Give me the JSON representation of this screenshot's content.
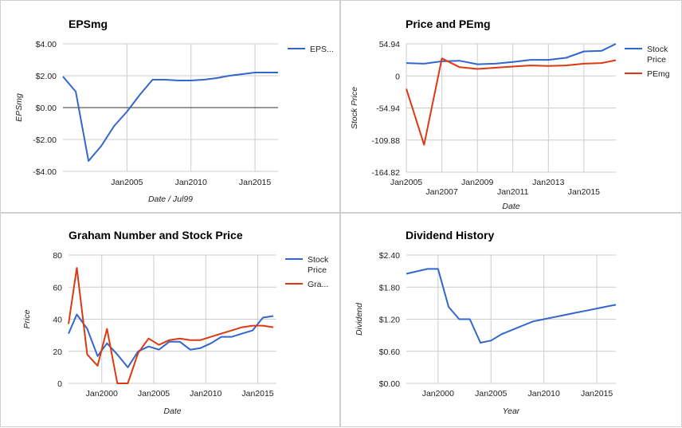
{
  "chart_data": [
    {
      "type": "line",
      "title": "EPSmg",
      "xlabel": "Date / Jul99",
      "ylabel": "EPSmg",
      "x_ticks": [
        "Jan2005",
        "Jan2010",
        "Jan2015"
      ],
      "y_ticks": [
        "$4.00",
        "$2.00",
        "$0.00",
        "-$2.00",
        "-$4.00"
      ],
      "ylim": [
        -4,
        4
      ],
      "xlim": [
        2000.0,
        2016.8
      ],
      "grid": true,
      "legend": "right",
      "series": [
        {
          "name": "EPS...",
          "color": "#3366cc",
          "x": [
            2000.0,
            2001.0,
            2002.0,
            2003.0,
            2004.0,
            2005.0,
            2006.0,
            2007.0,
            2008.0,
            2009.0,
            2010.0,
            2011.0,
            2012.0,
            2013.0,
            2014.0,
            2015.0,
            2016.0,
            2016.8
          ],
          "values": [
            1.95,
            1.0,
            -3.35,
            -2.4,
            -1.15,
            -0.25,
            0.8,
            1.75,
            1.75,
            1.7,
            1.7,
            1.75,
            1.85,
            2.0,
            2.1,
            2.2,
            2.2,
            2.2
          ]
        }
      ]
    },
    {
      "type": "line",
      "title": "Price and PEmg",
      "xlabel": "Date",
      "ylabel": "Stock Price",
      "x_ticks": [
        "Jan2005",
        "Jan2007",
        "Jan2009",
        "Jan2011",
        "Jan2013",
        "Jan2015"
      ],
      "y_ticks": [
        "54.94",
        "0",
        "-54.94",
        "-109.88",
        "-164.82"
      ],
      "ylim": [
        -164.82,
        54.94
      ],
      "xlim": [
        2005.0,
        2016.8
      ],
      "grid": true,
      "legend": "right",
      "series": [
        {
          "name": "Stock Price",
          "color": "#3366cc",
          "x": [
            2005.0,
            2006.0,
            2007.0,
            2008.0,
            2009.0,
            2010.0,
            2011.0,
            2012.0,
            2013.0,
            2014.0,
            2015.0,
            2016.0,
            2016.8
          ],
          "values": [
            22.0,
            21.0,
            25.0,
            26.0,
            20.0,
            21.0,
            24.0,
            27.5,
            27.5,
            31.0,
            42.0,
            43.0,
            55.0
          ]
        },
        {
          "name": "PEmg",
          "color": "#dc3912",
          "x": [
            2005.0,
            2006.0,
            2007.0,
            2008.0,
            2009.0,
            2010.0,
            2011.0,
            2012.0,
            2013.0,
            2014.0,
            2015.0,
            2016.0,
            2016.8
          ],
          "values": [
            -22.0,
            -118.0,
            30.0,
            15.0,
            12.0,
            14.0,
            16.0,
            18.0,
            17.0,
            18.0,
            21.0,
            22.0,
            27.0
          ]
        }
      ]
    },
    {
      "type": "line",
      "title": "Graham Number and Stock Price",
      "xlabel": "Date",
      "ylabel": "Price",
      "x_ticks": [
        "Jan2000",
        "Jan2005",
        "Jan2010",
        "Jan2015"
      ],
      "y_ticks": [
        "80",
        "60",
        "40",
        "20",
        "0"
      ],
      "ylim": [
        0,
        80
      ],
      "xlim": [
        1996.8,
        2016.8
      ],
      "grid": true,
      "legend": "right",
      "series": [
        {
          "name": "Stock Price",
          "color": "#3366cc",
          "x": [
            1996.8,
            1997.6,
            1998.6,
            1999.6,
            2000.5,
            2001.5,
            2002.5,
            2003.5,
            2004.5,
            2005.5,
            2006.5,
            2007.5,
            2008.5,
            2009.5,
            2010.5,
            2011.5,
            2012.5,
            2013.5,
            2014.5,
            2015.5,
            2016.5
          ],
          "values": [
            31,
            43,
            34,
            17,
            25,
            18,
            10,
            20,
            23,
            21,
            26,
            26,
            21,
            22,
            25,
            29,
            29,
            31,
            33,
            41,
            42
          ]
        },
        {
          "name": "Gra...",
          "color": "#dc3912",
          "x": [
            1996.8,
            1997.6,
            1998.6,
            1999.6,
            2000.5,
            2001.5,
            2002.5,
            2003.5,
            2004.5,
            2005.5,
            2006.5,
            2007.5,
            2008.5,
            2009.5,
            2010.5,
            2011.5,
            2012.5,
            2013.5,
            2014.5,
            2015.5,
            2016.5
          ],
          "values": [
            37,
            72,
            18,
            11,
            34,
            0,
            0,
            19,
            28,
            24,
            27,
            28,
            27,
            27,
            29,
            31,
            33,
            35,
            36,
            36,
            35
          ]
        }
      ]
    },
    {
      "type": "line",
      "title": "Dividend History",
      "xlabel": "Year",
      "ylabel": "Dividend",
      "x_ticks": [
        "Jan2000",
        "Jan2005",
        "Jan2010",
        "Jan2015"
      ],
      "y_ticks": [
        "$2.40",
        "$1.80",
        "$1.20",
        "$0.60",
        "$0.00"
      ],
      "ylim": [
        0,
        2.4
      ],
      "xlim": [
        1997.0,
        2016.8
      ],
      "grid": true,
      "legend": "none",
      "series": [
        {
          "name": "",
          "color": "#3366cc",
          "x": [
            1997.0,
            1999.0,
            2000.0,
            2001.0,
            2002.0,
            2003.0,
            2004.0,
            2005.0,
            2006.0,
            2007.0,
            2008.0,
            2009.0,
            2010.0,
            2011.0,
            2012.0,
            2013.0,
            2014.0,
            2015.0,
            2016.0,
            2016.8
          ],
          "values": [
            2.05,
            2.14,
            2.14,
            1.43,
            1.2,
            1.2,
            0.76,
            0.8,
            0.92,
            1.0,
            1.08,
            1.16,
            1.2,
            1.24,
            1.28,
            1.32,
            1.36,
            1.4,
            1.44,
            1.47
          ]
        }
      ]
    }
  ]
}
